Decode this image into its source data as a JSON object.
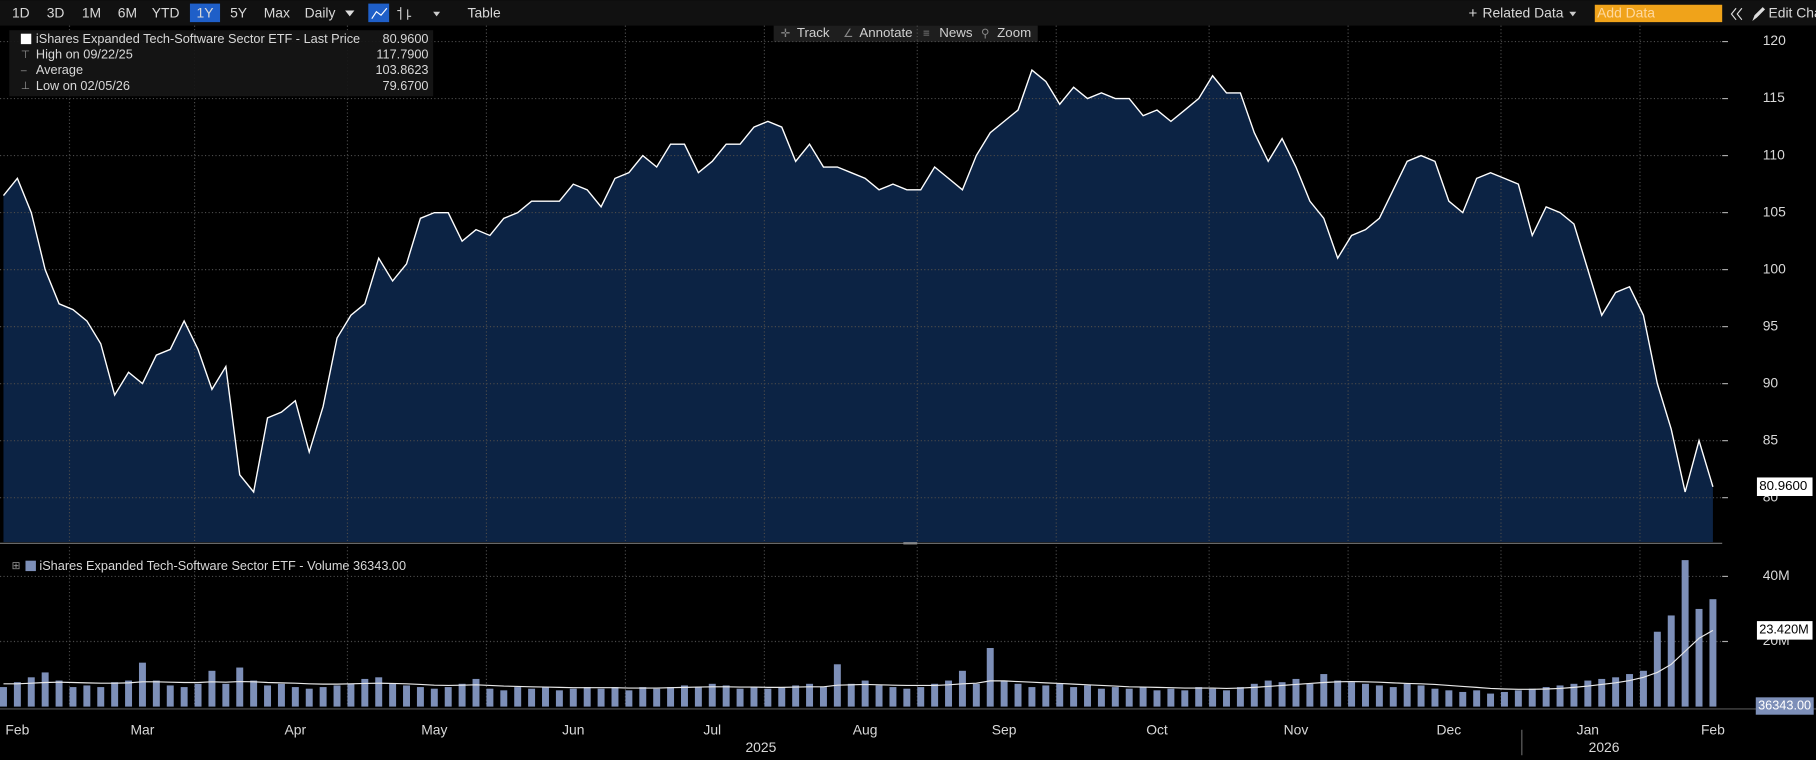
{
  "toolbar": {
    "ranges": [
      "1D",
      "3D",
      "1M",
      "6M",
      "YTD",
      "1Y",
      "5Y",
      "Max"
    ],
    "selected": "1Y",
    "frequency": "Daily",
    "view": "Table",
    "tools": [
      "Track",
      "Annotate",
      "News",
      "Zoom"
    ],
    "related": "Related Data",
    "add_data": "Add Data",
    "edit": "Edit Cha"
  },
  "chart_data": [
    {
      "type": "area",
      "color": "#ffffff",
      "fill": "#0c2344",
      "legend": [
        {
          "label": "iShares Expanded Tech-Software Sector ETF - Last Price",
          "value": "80.9600"
        },
        {
          "label": "High on 09/22/25",
          "value": "117.7900"
        },
        {
          "label": "Average",
          "value": "103.8623"
        },
        {
          "label": "Low on 02/05/26",
          "value": "79.6700"
        }
      ],
      "last_label": "80.9600",
      "years": [
        "2025",
        "2026"
      ],
      "categories": [
        null,
        "Feb",
        null,
        null,
        null,
        null,
        null,
        null,
        null,
        null,
        "Mar",
        null,
        null,
        null,
        null,
        null,
        null,
        null,
        null,
        null,
        null,
        "Apr",
        null,
        null,
        null,
        null,
        null,
        null,
        null,
        null,
        null,
        "May",
        null,
        null,
        null,
        null,
        null,
        null,
        null,
        null,
        null,
        "Jun",
        null,
        null,
        null,
        null,
        null,
        null,
        null,
        null,
        null,
        "Jul",
        null,
        null,
        null,
        null,
        null,
        null,
        null,
        null,
        null,
        null,
        "Aug",
        null,
        null,
        null,
        null,
        null,
        null,
        null,
        null,
        null,
        "Sep",
        null,
        null,
        null,
        null,
        null,
        null,
        null,
        null,
        null,
        null,
        "Oct",
        null,
        null,
        null,
        null,
        null,
        null,
        null,
        null,
        null,
        "Nov",
        null,
        null,
        null,
        null,
        null,
        null,
        null,
        null,
        null,
        null,
        "Dec",
        null,
        null,
        null,
        null,
        null,
        null,
        null,
        null,
        null,
        "Jan",
        null,
        null,
        null,
        null,
        null,
        null,
        null,
        null,
        "Feb"
      ],
      "values": [
        106.5,
        108,
        105,
        100,
        97,
        96.5,
        95.5,
        93.5,
        89,
        91,
        90,
        92.5,
        93,
        95.5,
        93,
        89.5,
        91.5,
        82,
        80.5,
        87,
        87.5,
        88.5,
        84,
        88,
        94,
        96,
        97,
        101,
        99,
        100.5,
        104.5,
        105,
        105,
        102.5,
        103.5,
        103,
        104.5,
        105,
        106,
        106,
        106,
        107.5,
        107,
        105.5,
        108,
        108.5,
        110,
        109,
        111,
        111,
        108.5,
        109.5,
        111,
        111,
        112.5,
        113,
        112.5,
        109.5,
        111,
        109,
        109,
        108.5,
        108,
        107,
        107.5,
        107,
        107,
        109,
        108,
        107,
        110,
        112,
        113,
        114,
        117.5,
        116.5,
        114.5,
        116,
        115,
        115.5,
        115,
        115,
        113.5,
        114,
        113,
        114,
        115,
        117,
        115.5,
        115.5,
        112,
        109.5,
        111.5,
        109,
        106,
        104.5,
        101,
        103,
        103.5,
        104.5,
        107,
        109.5,
        110,
        109.5,
        106,
        105,
        108,
        108.5,
        108,
        107.5,
        103,
        105.5,
        105,
        104,
        100,
        96,
        98,
        98.5,
        96,
        90,
        86,
        80.5,
        85,
        80.96
      ],
      "ylim": [
        76.1,
        121.4
      ],
      "yticks": [
        80,
        85,
        90,
        95,
        100,
        105,
        110,
        115,
        120
      ],
      "grid": true
    },
    {
      "type": "bar",
      "legend": "iShares Expanded Tech-Software Sector ETF - Volume 36343.00",
      "last_labels": [
        "23.420M",
        "36343.00"
      ],
      "series": [
        {
          "color": "#7d8fb8",
          "values": [
            6,
            7.5,
            9,
            10.5,
            8,
            6,
            6.5,
            6,
            7.5,
            8,
            13.5,
            8,
            6.5,
            6,
            7,
            11,
            7,
            12,
            8,
            6.5,
            7,
            6,
            5.5,
            6,
            6.5,
            7,
            8.5,
            9,
            7,
            6.5,
            6,
            5.5,
            6,
            7,
            8.5,
            5.5,
            5,
            6,
            5.5,
            6,
            5,
            5.5,
            6,
            5.5,
            6,
            5,
            6,
            5.5,
            6,
            6.5,
            6,
            7,
            6.5,
            5.5,
            6,
            5.5,
            6,
            6.5,
            7,
            6,
            13,
            7,
            8,
            6.5,
            6,
            5.5,
            6,
            7,
            8,
            11,
            7,
            18,
            8,
            7,
            6,
            6.5,
            7,
            6,
            6.5,
            5.5,
            6,
            5.5,
            6,
            5,
            5.5,
            5,
            6,
            5.5,
            5,
            6,
            7,
            8,
            7.5,
            8.5,
            7,
            10,
            8,
            7.5,
            7,
            6.5,
            6,
            7,
            6.5,
            5.5,
            5,
            4.5,
            5,
            4,
            4.5,
            5,
            5.5,
            6,
            6.5,
            7,
            8,
            8.5,
            9,
            10,
            11,
            23,
            28,
            45,
            30,
            33
          ]
        },
        {
          "color": "#e8e8e8",
          "values": [
            7,
            7,
            7.2,
            7.4,
            7.5,
            7.4,
            7.3,
            7.2,
            7.2,
            7.3,
            7.6,
            7.6,
            7.5,
            7.4,
            7.4,
            7.6,
            7.5,
            7.7,
            7.6,
            7.4,
            7.3,
            7.2,
            7,
            6.9,
            6.9,
            7,
            7.1,
            7.2,
            7.1,
            7,
            6.8,
            6.6,
            6.5,
            6.6,
            6.7,
            6.5,
            6.3,
            6.2,
            6.1,
            6,
            5.9,
            5.8,
            5.8,
            5.8,
            5.8,
            5.7,
            5.7,
            5.7,
            5.8,
            5.9,
            6,
            6.1,
            6.1,
            6,
            6,
            5.9,
            5.9,
            6,
            6.1,
            6.1,
            6.6,
            6.7,
            6.8,
            6.7,
            6.6,
            6.5,
            6.5,
            6.5,
            6.7,
            7,
            7.2,
            7.9,
            7.9,
            7.7,
            7.5,
            7.3,
            7.1,
            6.9,
            6.7,
            6.5,
            6.3,
            6.1,
            6,
            5.9,
            5.8,
            5.7,
            5.7,
            5.7,
            5.6,
            5.7,
            5.9,
            6.2,
            6.5,
            6.8,
            7.1,
            7.4,
            7.6,
            7.7,
            7.6,
            7.5,
            7.3,
            7.1,
            7,
            6.8,
            6.5,
            6.2,
            5.9,
            5.6,
            5.4,
            5.3,
            5.3,
            5.4,
            5.6,
            5.9,
            6.3,
            6.8,
            7.3,
            8,
            9,
            10.5,
            13,
            17,
            21,
            23.42
          ]
        }
      ],
      "ylim": [
        0,
        49.1
      ],
      "yticks": [
        {
          "value": 20,
          "label": "20M"
        },
        {
          "value": 40,
          "label": "40M"
        }
      ],
      "grid": true
    }
  ]
}
